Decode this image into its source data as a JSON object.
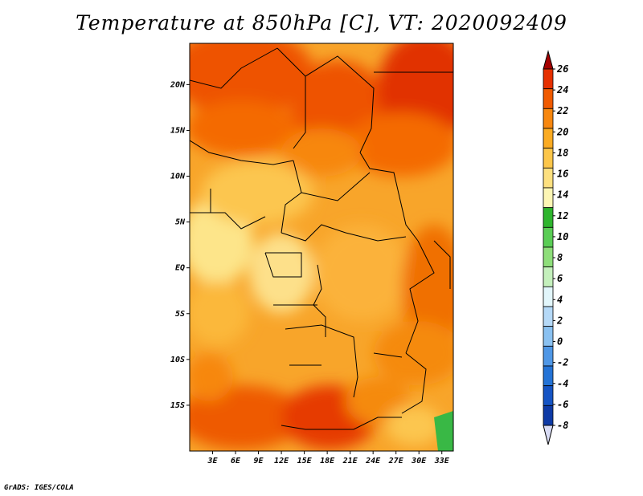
{
  "title": "Temperature at 850hPa [C], VT: 2020092409",
  "credit": "GrADS: IGES/COLA",
  "map": {
    "lat_labels": [
      "20N",
      "15N",
      "10N",
      "5N",
      "EQ",
      "5S",
      "10S",
      "15S"
    ],
    "lat_values": [
      20,
      15,
      10,
      5,
      0,
      -5,
      -10,
      -15
    ],
    "lon_labels": [
      "3E",
      "6E",
      "9E",
      "12E",
      "15E",
      "18E",
      "21E",
      "24E",
      "27E",
      "30E",
      "33E"
    ],
    "lon_values": [
      3,
      6,
      9,
      12,
      15,
      18,
      21,
      24,
      27,
      30,
      33
    ],
    "lon_range": [
      0,
      34.5
    ],
    "lat_range": [
      -20,
      24.5
    ]
  },
  "colorbar": {
    "labels": [
      "26",
      "24",
      "22",
      "20",
      "18",
      "16",
      "14",
      "12",
      "10",
      "8",
      "6",
      "4",
      "2",
      "0",
      "-2",
      "-4",
      "-6",
      "-8"
    ],
    "colors": [
      "#a50000",
      "#e63000",
      "#f05a00",
      "#f7870f",
      "#fbab22",
      "#fcc64a",
      "#fde07f",
      "#fdf6b4",
      "#2fb52e",
      "#5acd55",
      "#8ede7a",
      "#c4f0bc",
      "#e2f6fb",
      "#b5d9f7",
      "#8ac1f1",
      "#4f97e6",
      "#2473d6",
      "#1554c4",
      "#0e3aa6",
      "#0a1e7a"
    ],
    "top_triangle_color": "#a50000",
    "bottom_triangle_color": "#d9dcf5"
  }
}
